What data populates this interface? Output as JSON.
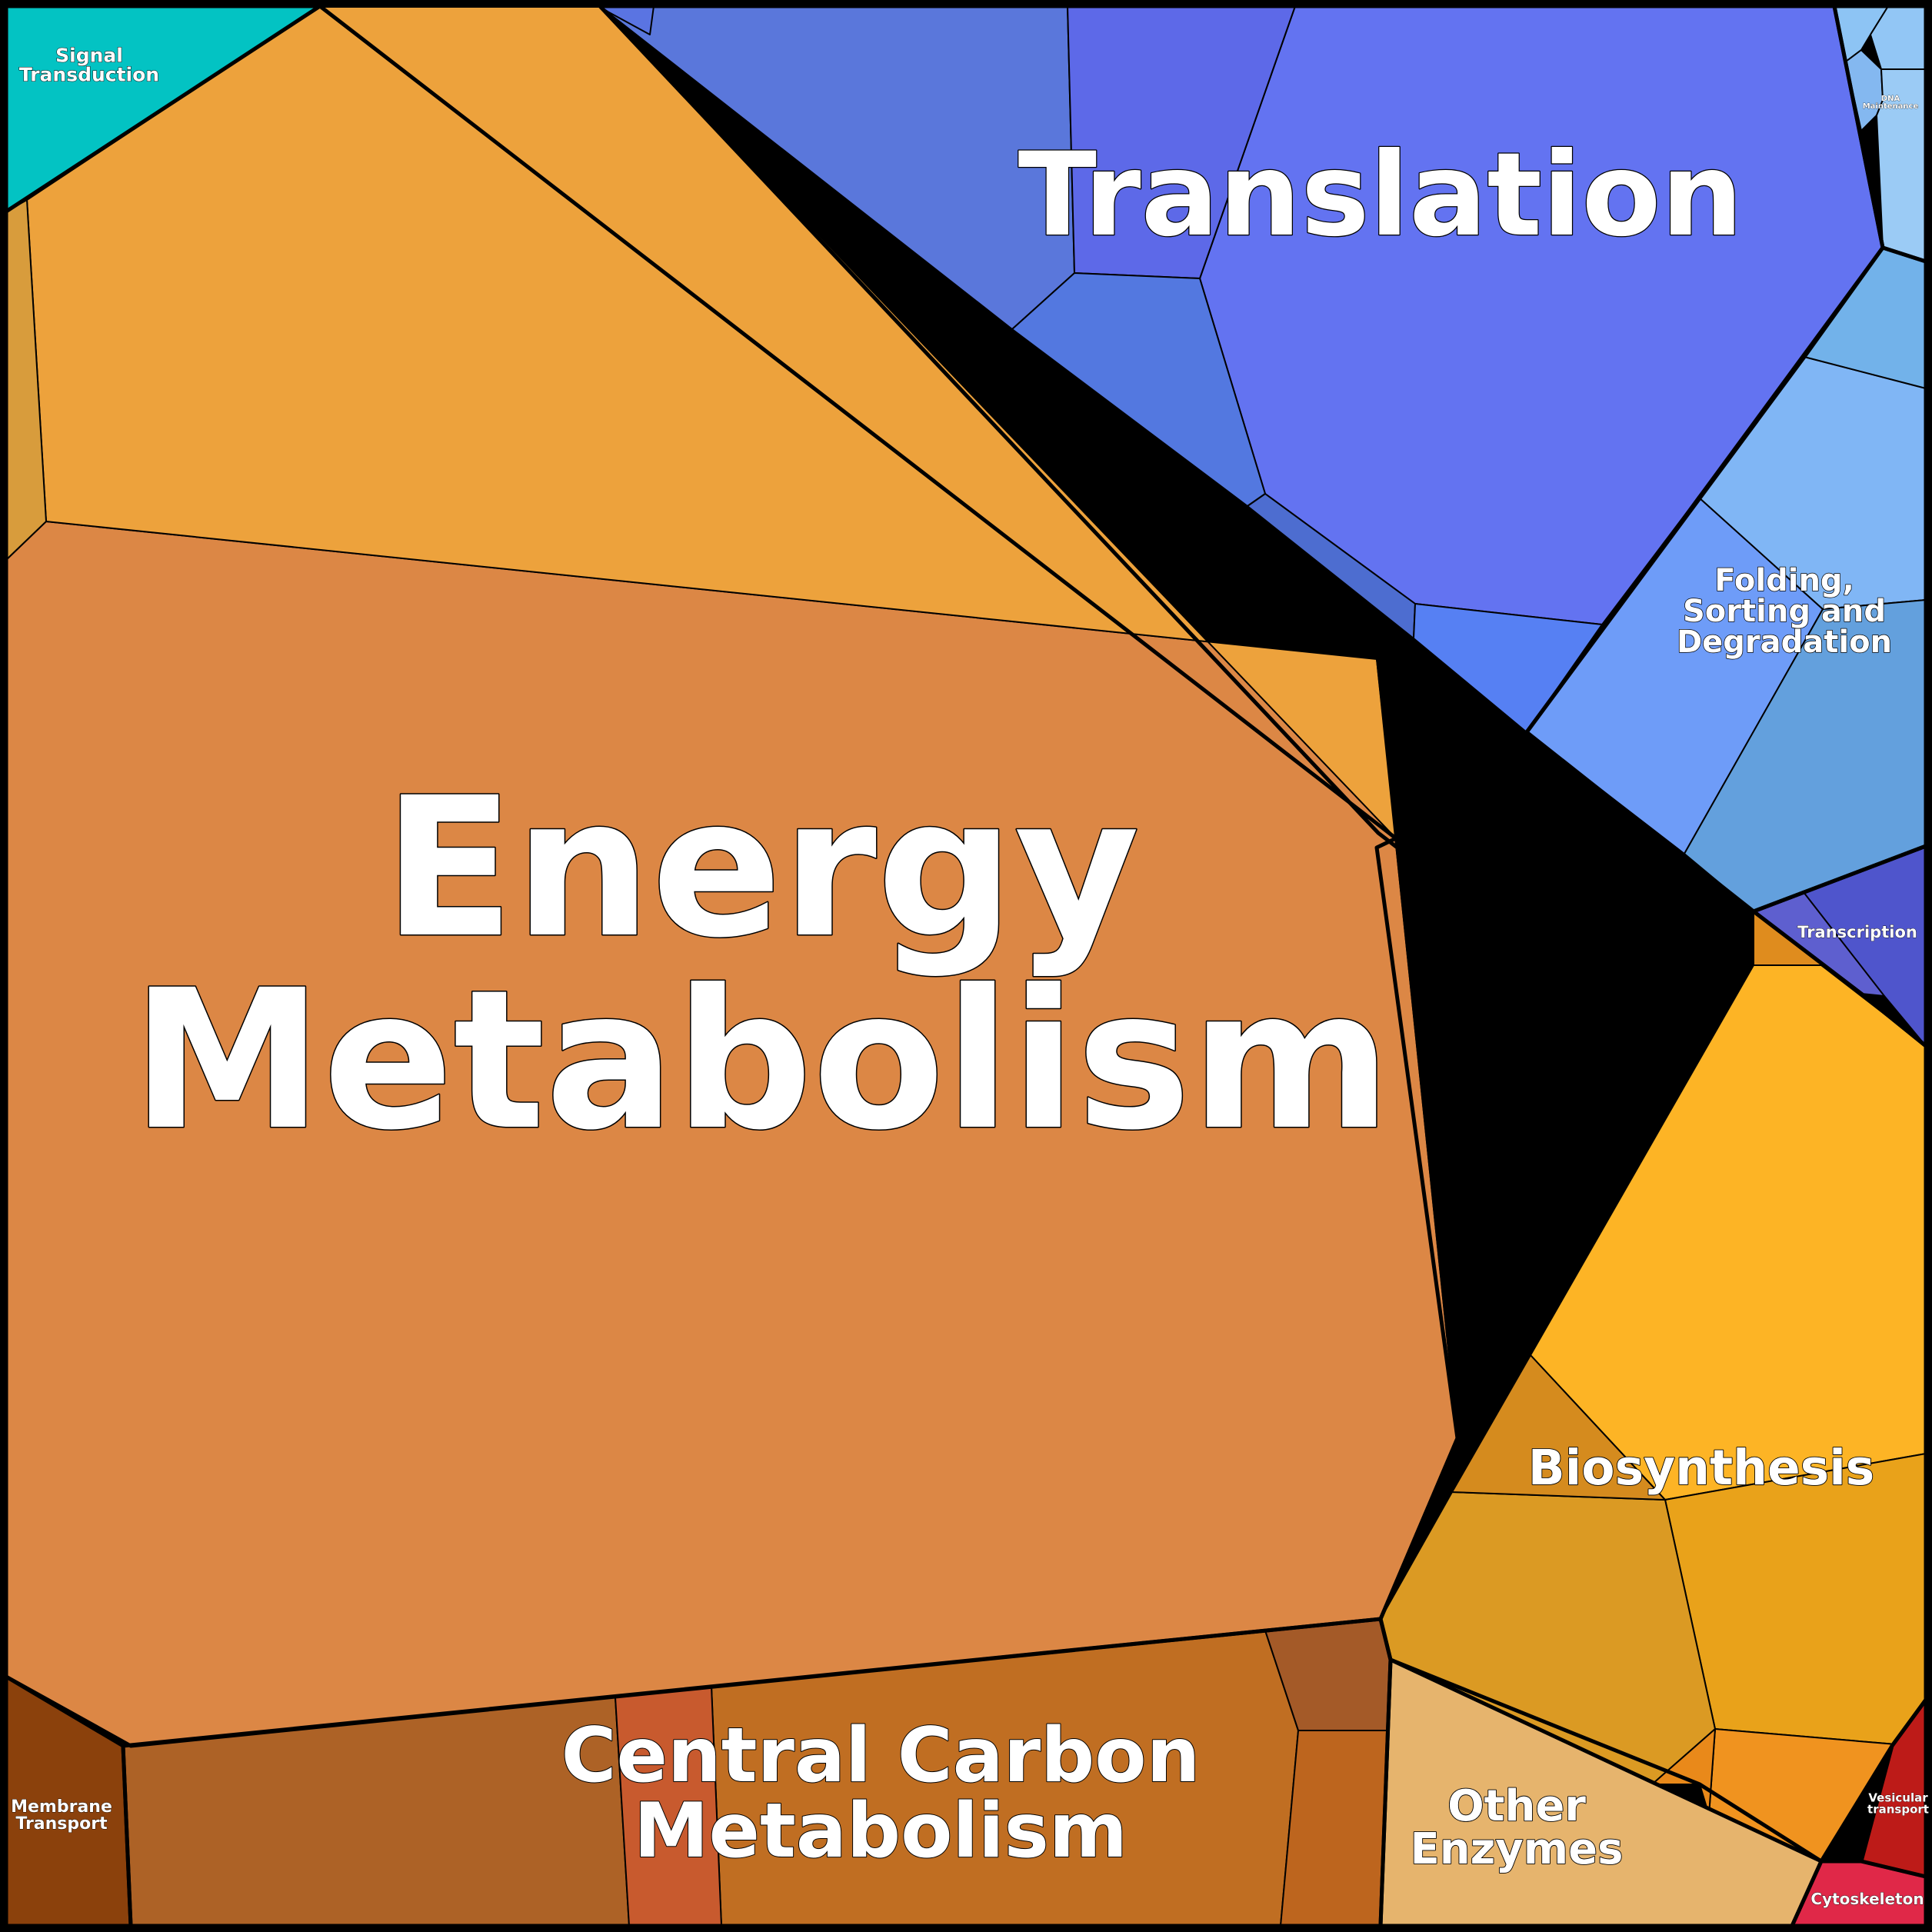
{
  "diagram": {
    "type": "voronoi-treemap",
    "groups": [
      {
        "id": "energy-metabolism",
        "label": "Energy Metabolism",
        "color": "#DC8745",
        "cells": [
          {
            "color": "#DC8745"
          },
          {
            "color": "#EDA23C"
          },
          {
            "color": "#DA9141"
          },
          {
            "color": "#D89C3C"
          }
        ]
      },
      {
        "id": "translation",
        "label": "Translation",
        "color": "#6373F1",
        "cells": [
          {
            "color": "#6373F1"
          },
          {
            "color": "#5A77DB"
          },
          {
            "color": "#5D69E8"
          },
          {
            "color": "#5378E0"
          },
          {
            "color": "#4D6DD0"
          },
          {
            "color": "#5680F3"
          },
          {
            "color": "#5A74E2"
          }
        ]
      },
      {
        "id": "folding-sorting-degradation",
        "label": "Folding, Sorting and Degradation",
        "color": "#6E9CF8",
        "cells": [
          {
            "color": "#6E9CF8"
          },
          {
            "color": "#80B6F5"
          },
          {
            "color": "#63A0DD"
          },
          {
            "color": "#72B2EA"
          }
        ]
      },
      {
        "id": "dna-maintenance",
        "label": "DNA Maintenance",
        "color": "#8DC4F4",
        "cells": [
          {
            "color": "#8DC4F4"
          },
          {
            "color": "#92C6F5"
          },
          {
            "color": "#84B8F0"
          },
          {
            "color": "#9BCBF5"
          }
        ]
      },
      {
        "id": "transcription",
        "label": "Transcription",
        "color": "#4F55CC",
        "cells": [
          {
            "color": "#4F55CC"
          },
          {
            "color": "#5E5FCF"
          }
        ]
      },
      {
        "id": "biosynthesis",
        "label": "Biosynthesis",
        "color": "#FDB425",
        "cells": [
          {
            "color": "#FDB425"
          },
          {
            "color": "#E9A21A"
          },
          {
            "color": "#DB9A23"
          },
          {
            "color": "#D58B1E"
          },
          {
            "color": "#F0931F"
          },
          {
            "color": "#E9891A"
          },
          {
            "color": "#DF8C1E"
          }
        ]
      },
      {
        "id": "central-carbon-metabolism",
        "label": "Central Carbon Metabolism",
        "color": "#C06E22",
        "cells": [
          {
            "color": "#AD6226"
          },
          {
            "color": "#C06E22"
          },
          {
            "color": "#C85A2E"
          },
          {
            "color": "#A45A28"
          },
          {
            "color": "#BD651E"
          }
        ]
      },
      {
        "id": "other-enzymes",
        "label": "Other Enzymes",
        "color": "#E6B46D",
        "cells": [
          {
            "color": "#E6B46D"
          }
        ]
      },
      {
        "id": "signal-transduction",
        "label": "Signal Transduction",
        "color": "#03C3C3",
        "cells": [
          {
            "color": "#03C3C3"
          }
        ]
      },
      {
        "id": "membrane-transport",
        "label": "Membrane Transport",
        "color": "#8B410C",
        "cells": [
          {
            "color": "#8B410C"
          }
        ]
      },
      {
        "id": "vesicular-transport",
        "label": "Vesicular transport",
        "color": "#BD1B18",
        "cells": [
          {
            "color": "#BD1B18"
          }
        ]
      },
      {
        "id": "cytoskeleton",
        "label": "Cytoskeleton",
        "color": "#E02848",
        "cells": [
          {
            "color": "#E02848"
          }
        ]
      }
    ]
  }
}
